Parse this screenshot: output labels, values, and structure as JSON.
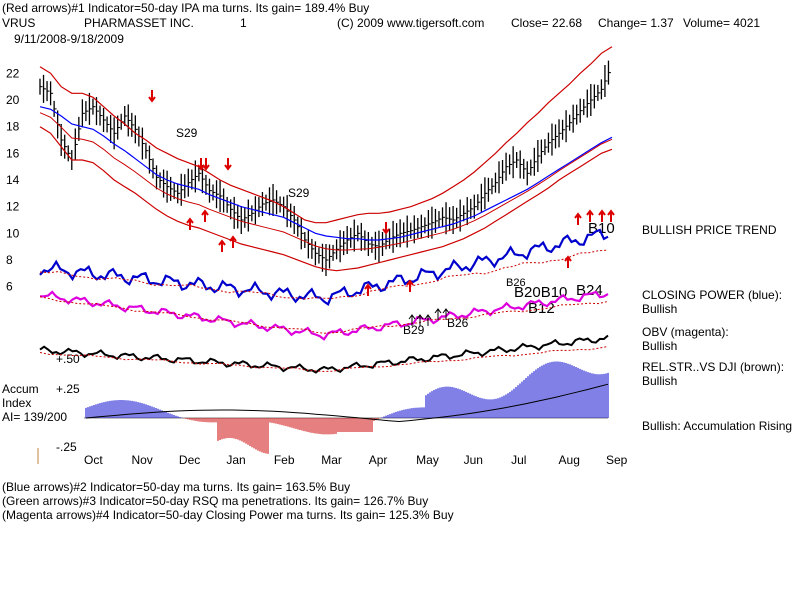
{
  "header": {
    "line1": "(Red arrows)#1 Indicator=50-day IPA ma turns. Its gain= 189.4% Buy",
    "symbol": "VRUS",
    "company": "PHARMASSET INC.",
    "chart_num": "1",
    "copyright": "(C) 2009 www.tigersoft.com",
    "close": "Close=  22.68",
    "change": "Change= 1.37",
    "volume": "Volume= 4021",
    "date_range": "9/11/2008-9/18/2009"
  },
  "footer": {
    "line1": "(Blue arrows)#2 Indicator=50-day ma turns. Its gain= 163.5% Buy",
    "line2": "(Green arrows)#3 Indicator=50-day RSQ ma penetrations. Its gain= 126.7% Buy",
    "line3": "(Magenta arrows)#4 Indicator=50-day Closing Power ma turns. Its gain= 125.3% Buy"
  },
  "side_labels": {
    "trend": "BULLISH PRICE TREND",
    "cp_title": "CLOSING POWER (blue):",
    "cp_value": "Bullish",
    "obv_title": "OBV (magenta):",
    "obv_value": "Bullish",
    "rel_title": "REL.STR..VS DJI (brown):",
    "rel_value": "Bullish",
    "accum": "Bullish: Accumulation Rising"
  },
  "accum_index": {
    "label1": "Accum",
    "label2": "Index",
    "ai_value": "AI= 139/200",
    "tick_plus50": "+.50",
    "tick_plus25": "+.25",
    "tick_minus25": "-.25"
  },
  "annotations": {
    "s29_a": "S29",
    "s29_b": "S29",
    "b10_upper": "B10",
    "b24": "B24",
    "b12": "B12",
    "b20_b10": "B20B10",
    "b26_small": "B26",
    "b29": "B29",
    "b26": "B26"
  },
  "colors": {
    "price": "#000000",
    "bands": "#cc0000",
    "ma": "#0000ff",
    "closing_power": "#0000cc",
    "obv": "#dd00dd",
    "rel_strength": "#000000",
    "accum_pos": "#0000cc",
    "accum_neg": "#cc0000",
    "arrow_red": "#dd0000"
  },
  "chart_data": {
    "type": "line",
    "title": "PHARMASSET INC.",
    "ylim": [
      5,
      23
    ],
    "y_ticks": [
      "22",
      "20",
      "18",
      "16",
      "14",
      "12",
      "10",
      "8",
      "6"
    ],
    "x_ticks": [
      "Oct",
      "Nov",
      "Dec",
      "Jan",
      "Feb",
      "Mar",
      "Apr",
      "May",
      "Jun",
      "Jul",
      "Aug",
      "Sep"
    ],
    "series": [
      {
        "values": [
          21.0,
          20.5,
          17.0,
          15.5,
          19.0,
          19.5,
          18.5,
          17.5,
          18.8,
          17.8,
          16.2,
          14.2,
          13.5,
          13.0,
          13.8,
          14.5,
          13.2,
          12.8,
          11.8,
          11.0,
          11.5,
          12.2,
          12.5,
          12.0,
          11.0,
          9.5,
          8.5,
          8.0,
          8.8,
          9.5,
          10.0,
          9.2,
          9.0,
          9.6,
          10.0,
          10.2,
          10.5,
          10.8,
          11.2,
          11.0,
          11.5,
          12.0,
          13.0,
          13.8,
          15.0,
          15.5,
          14.5,
          15.8,
          16.8,
          17.5,
          18.3,
          19.2,
          20.0,
          20.8,
          22.68
        ]
      }
    ],
    "upper_band": [
      22.5,
      22.0,
      21.0,
      20.5,
      20.5,
      20.2,
      19.5,
      18.8,
      18.2,
      17.5,
      17.0,
      16.4,
      16.0,
      15.6,
      15.3,
      15.0,
      14.5,
      14.0,
      13.6,
      13.3,
      13.0,
      12.7,
      12.4,
      12.0,
      11.5,
      11.0,
      10.8,
      10.8,
      11.0,
      11.2,
      11.4,
      11.5,
      11.5,
      11.6,
      11.8,
      12.0,
      12.3,
      12.6,
      13.0,
      13.5,
      14.0,
      14.6,
      15.3,
      16.0,
      16.8,
      17.5,
      18.3,
      19.0,
      19.8,
      20.5,
      21.2,
      22.0,
      22.7,
      23.5,
      24.0
    ],
    "lower_band": [
      18.0,
      17.5,
      16.5,
      15.5,
      15.5,
      15.3,
      14.7,
      14.0,
      13.5,
      13.0,
      12.4,
      11.8,
      11.3,
      10.9,
      10.6,
      10.4,
      10.1,
      9.8,
      9.5,
      9.2,
      9.0,
      8.8,
      8.6,
      8.4,
      8.1,
      7.8,
      7.5,
      7.3,
      7.2,
      7.3,
      7.4,
      7.6,
      7.8,
      8.0,
      8.2,
      8.4,
      8.6,
      8.8,
      9.0,
      9.3,
      9.6,
      10.0,
      10.4,
      10.9,
      11.4,
      11.9,
      12.4,
      12.9,
      13.4,
      14.0,
      14.5,
      15.0,
      15.5,
      16.0,
      16.3
    ],
    "moving_average": [
      19.5,
      19.3,
      18.8,
      18.2,
      18.0,
      17.8,
      17.3,
      16.7,
      16.2,
      15.6,
      15.0,
      14.4,
      14.0,
      13.7,
      13.5,
      13.3,
      12.9,
      12.6,
      12.3,
      12.0,
      11.8,
      11.6,
      11.4,
      11.2,
      10.8,
      10.4,
      10.0,
      9.8,
      9.7,
      9.6,
      9.6,
      9.5,
      9.5,
      9.6,
      9.7,
      9.9,
      10.1,
      10.3,
      10.5,
      10.7,
      11.0,
      11.3,
      11.7,
      12.1,
      12.5,
      12.9,
      13.3,
      13.8,
      14.3,
      14.8,
      15.3,
      15.8,
      16.3,
      16.8,
      17.2
    ]
  }
}
